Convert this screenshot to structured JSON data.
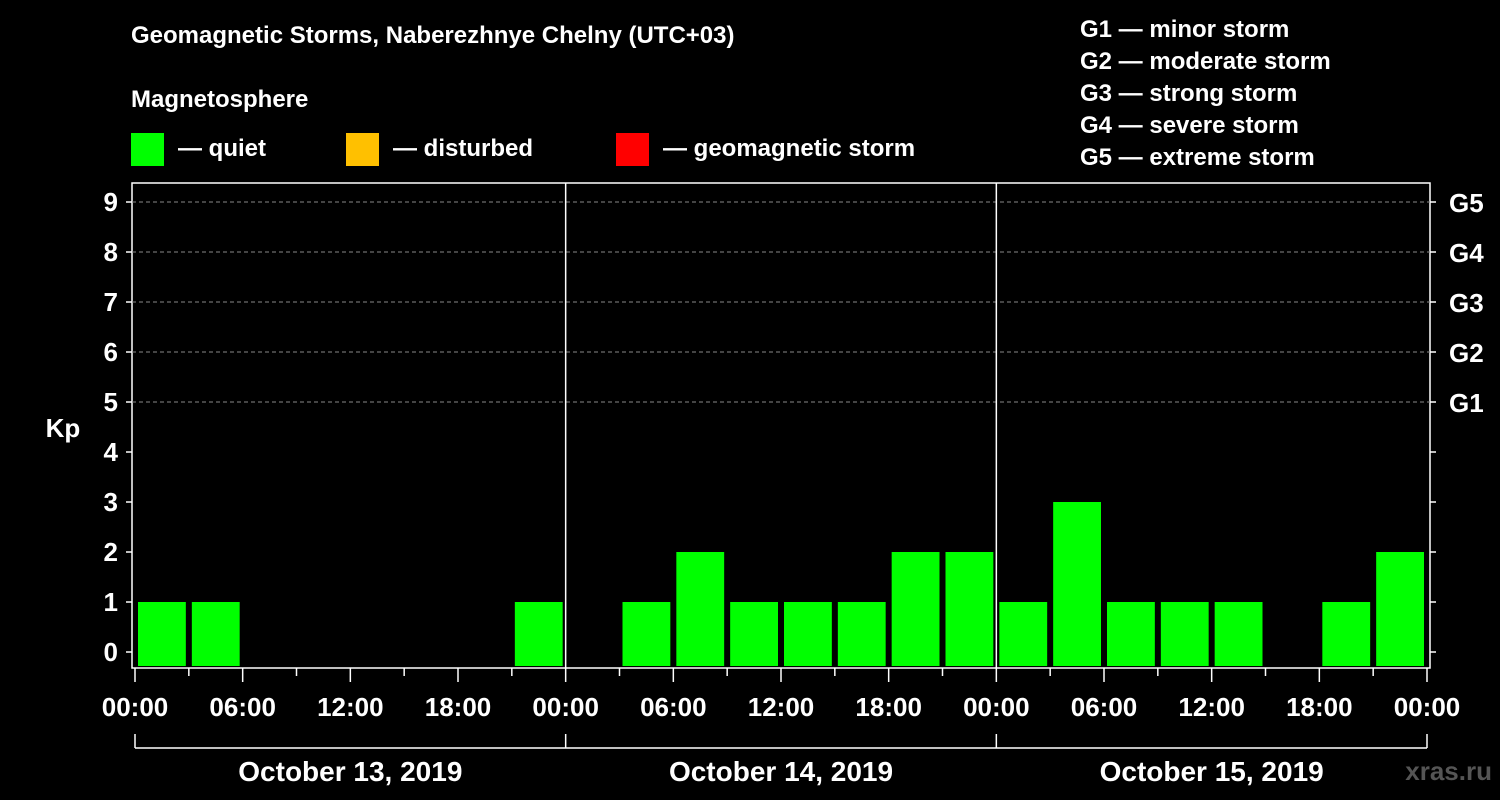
{
  "title": "Geomagnetic Storms, Naberezhnye Chelny (UTC+03)",
  "magnetosphere": {
    "heading": "Magnetosphere",
    "legend": [
      {
        "label": "— quiet",
        "color": "#00ff00"
      },
      {
        "label": "— disturbed",
        "color": "#ffc000"
      },
      {
        "label": "— geomagnetic storm",
        "color": "#ff0000"
      }
    ]
  },
  "storm_levels": [
    "G1 — minor storm",
    "G2 — moderate storm",
    "G3 — strong storm",
    "G4 — severe storm",
    "G5 — extreme storm"
  ],
  "watermark": "xras.ru",
  "chart_data": {
    "type": "bar",
    "title": "Geomagnetic Storms, Naberezhnye Chelny (UTC+03)",
    "ylabel": "Kp",
    "xlabel": "",
    "ylim": [
      0,
      9
    ],
    "yticks": [
      0,
      1,
      2,
      3,
      4,
      5,
      6,
      7,
      8,
      9
    ],
    "right_axis_labels": [
      {
        "kp": 5,
        "label": "G1"
      },
      {
        "kp": 6,
        "label": "G2"
      },
      {
        "kp": 7,
        "label": "G3"
      },
      {
        "kp": 8,
        "label": "G4"
      },
      {
        "kp": 9,
        "label": "G5"
      }
    ],
    "days": [
      "October 13, 2019",
      "October 14, 2019",
      "October 15, 2019"
    ],
    "time_labels": [
      "00:00",
      "06:00",
      "12:00",
      "18:00"
    ],
    "end_time_label": "00:00",
    "interval_hours": 3,
    "values": [
      1,
      1,
      0,
      0,
      0,
      0,
      0,
      1,
      0,
      1,
      2,
      1,
      1,
      1,
      2,
      2,
      1,
      3,
      1,
      1,
      1,
      0,
      1,
      2
    ],
    "bar_color_quiet": "#00ff00",
    "gridlines": true
  }
}
